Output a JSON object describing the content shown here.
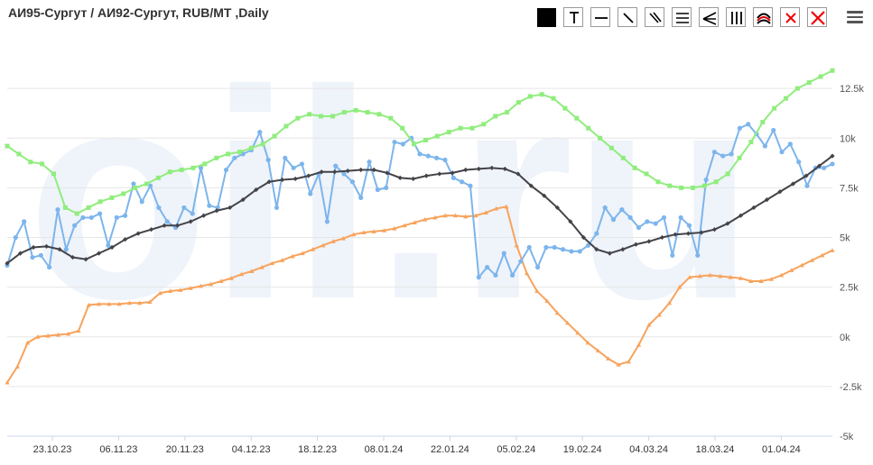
{
  "title": "АИ95-Сургут / АИ92-Сургут, RUB/MT ,Daily",
  "toolbar": {
    "buttons": [
      {
        "icon": "square-filled-icon"
      },
      {
        "icon": "text-tool-icon"
      },
      {
        "icon": "horizontal-line-icon"
      },
      {
        "icon": "trend-line-icon"
      },
      {
        "icon": "parallel-channel-icon"
      },
      {
        "icon": "horizontal-lines-icon"
      },
      {
        "icon": "fan-lines-icon"
      },
      {
        "icon": "vertical-lines-icon"
      },
      {
        "icon": "arc-icon"
      },
      {
        "icon": "delete-icon"
      },
      {
        "icon": "delete-all-icon"
      }
    ],
    "menu_icon": "hamburger-menu-icon"
  },
  "watermark": "oil.ru",
  "chart_data": {
    "type": "line",
    "x_tick_labels": [
      "23.10.23",
      "06.11.23",
      "20.11.23",
      "04.12.23",
      "18.12.23",
      "08.01.24",
      "22.01.24",
      "05.02.24",
      "19.02.24",
      "04.03.24",
      "18.03.24",
      "01.04.24"
    ],
    "y_tick_labels": [
      "12.5k",
      "10k",
      "7.5k",
      "5k",
      "2.5k",
      "0k",
      "-2.5k",
      "-5k"
    ],
    "ylim": [
      -5000,
      15000
    ],
    "grid": true,
    "series": [
      {
        "color": "#f7a35c",
        "marker": "triangle",
        "values": [
          -2300,
          -1500,
          -300,
          0,
          50,
          100,
          150,
          300,
          1600,
          1650,
          1650,
          1650,
          1700,
          1700,
          1750,
          2200,
          2300,
          2350,
          2450,
          2550,
          2650,
          2800,
          2950,
          3150,
          3300,
          3500,
          3700,
          3850,
          4050,
          4200,
          4400,
          4600,
          4800,
          4950,
          5150,
          5250,
          5300,
          5350,
          5450,
          5600,
          5750,
          5900,
          6000,
          6100,
          6100,
          6050,
          6100,
          6250,
          6450,
          6550,
          4600,
          3200,
          2300,
          1800,
          1200,
          700,
          200,
          -300,
          -700,
          -1100,
          -1400,
          -1250,
          -400,
          600,
          1100,
          1700,
          2500,
          3000,
          3050,
          3100,
          3050,
          3000,
          2950,
          2800,
          2800,
          2900,
          3100,
          3350,
          3600,
          3850,
          4100,
          4350
        ]
      },
      {
        "color": "#7cb5ec",
        "marker": "circle",
        "values": [
          3600,
          5000,
          5800,
          4000,
          4100,
          3500,
          6400,
          4400,
          5600,
          6000,
          6000,
          6200,
          4600,
          6000,
          6100,
          7700,
          6800,
          7600,
          6500,
          5800,
          5500,
          6500,
          6200,
          8500,
          6600,
          6500,
          8400,
          9000,
          9200,
          9400,
          10300,
          8900,
          6500,
          9000,
          8500,
          8700,
          7200,
          8200,
          5800,
          8600,
          8200,
          7800,
          7000,
          8800,
          7400,
          7500,
          9800,
          9700,
          10000,
          9200,
          9100,
          9000,
          8900,
          8000,
          7800,
          7600,
          3000,
          3500,
          3100,
          4200,
          3100,
          3800,
          4500,
          3500,
          4500,
          4500,
          4400,
          4300,
          4300,
          4600,
          5200,
          6500,
          5900,
          6400,
          6000,
          5500,
          5800,
          5700,
          6000,
          4100,
          6000,
          5600,
          4100,
          7900,
          9300,
          9100,
          9200,
          10500,
          10700,
          10200,
          9600,
          10400,
          9300,
          9700,
          8800,
          7600,
          8500,
          8500,
          8700
        ]
      },
      {
        "color": "#434348",
        "marker": "diamond",
        "values": [
          3700,
          4200,
          4500,
          4550,
          4400,
          4000,
          3900,
          4200,
          4500,
          4900,
          5200,
          5400,
          5600,
          5600,
          5800,
          6100,
          6350,
          6500,
          6900,
          7400,
          7800,
          7900,
          7950,
          8100,
          8300,
          8300,
          8350,
          8400,
          8400,
          8250,
          8000,
          7950,
          8100,
          8200,
          8250,
          8400,
          8450,
          8500,
          8450,
          8200,
          7600,
          7100,
          6500,
          5800,
          5000,
          4400,
          4200,
          4400,
          4650,
          4800,
          5000,
          5150,
          5200,
          5250,
          5400,
          5700,
          6100,
          6500,
          6900,
          7300,
          7700,
          8100,
          8600,
          9100
        ]
      },
      {
        "color": "#90ed7d",
        "marker": "square",
        "values": [
          9600,
          9200,
          8800,
          8700,
          8200,
          6500,
          6200,
          6500,
          6800,
          7000,
          7200,
          7500,
          7700,
          8000,
          8300,
          8400,
          8500,
          8700,
          9000,
          9200,
          9300,
          9500,
          9700,
          10100,
          10600,
          11000,
          11200,
          11100,
          11100,
          11300,
          11400,
          11300,
          11200,
          11000,
          10500,
          9700,
          9900,
          10100,
          10300,
          10500,
          10500,
          10700,
          11100,
          11300,
          11800,
          12100,
          12200,
          12000,
          11500,
          11000,
          10500,
          10000,
          9500,
          9000,
          8500,
          8200,
          7800,
          7600,
          7500,
          7500,
          7600,
          7800,
          8200,
          9000,
          9800,
          10800,
          11500,
          12000,
          12500,
          12800,
          13100,
          13400
        ]
      }
    ]
  }
}
